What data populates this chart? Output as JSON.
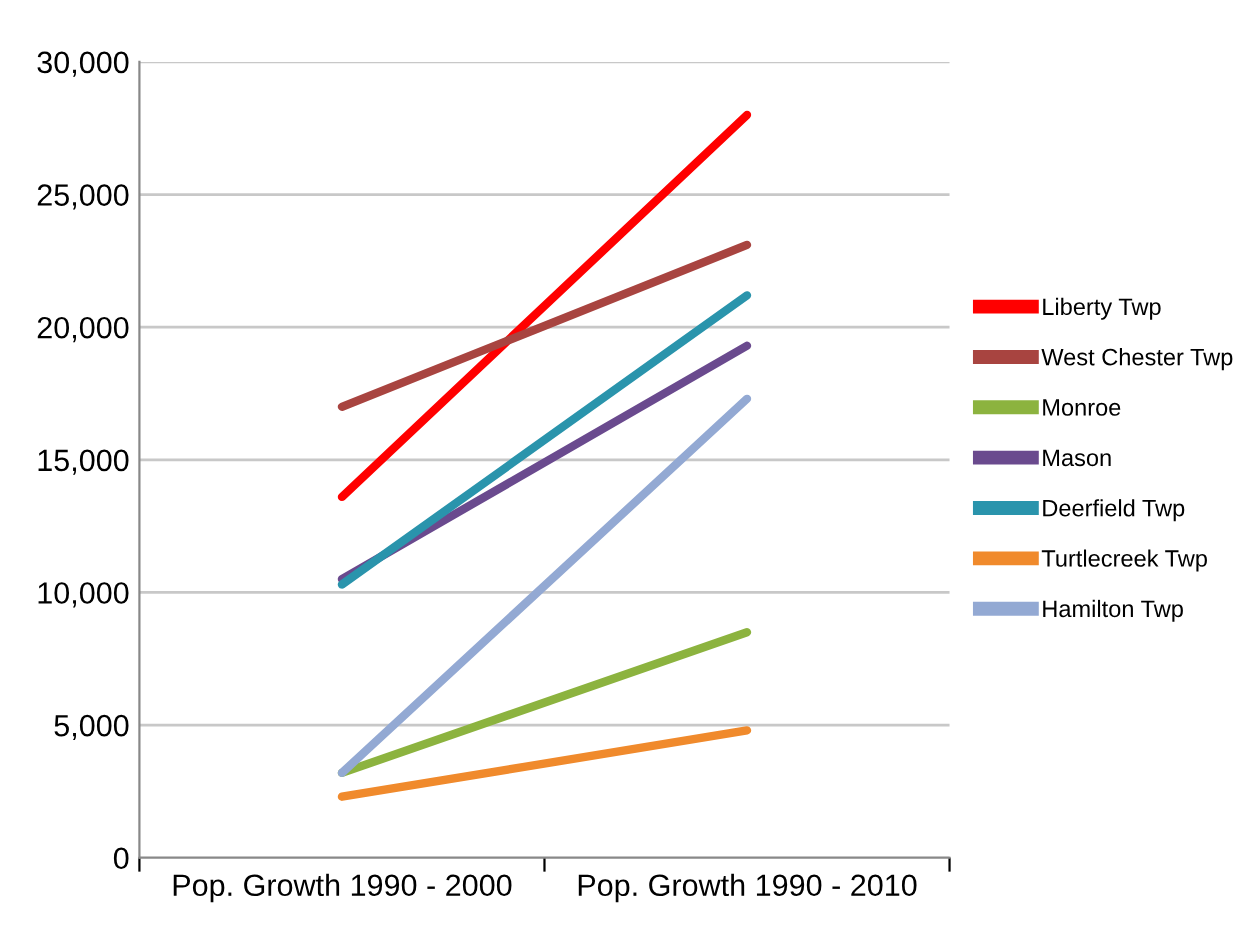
{
  "chart_data": {
    "type": "line",
    "categories": [
      "Pop. Growth 1990 - 2000",
      "Pop. Growth 1990 - 2010"
    ],
    "series": [
      {
        "name": "Liberty Twp",
        "color": "#ff0000",
        "values": [
          13600,
          28000
        ]
      },
      {
        "name": "West Chester Twp",
        "color": "#a84440",
        "values": [
          17000,
          23100
        ]
      },
      {
        "name": "Monroe",
        "color": "#8cb33f",
        "values": [
          3200,
          8500
        ]
      },
      {
        "name": "Mason",
        "color": "#6a4a8e",
        "values": [
          10500,
          19300
        ]
      },
      {
        "name": "Deerfield Twp",
        "color": "#2a94ac",
        "values": [
          10300,
          21200
        ]
      },
      {
        "name": "Turtlecreek Twp",
        "color": "#f08a2c",
        "values": [
          2300,
          4800
        ]
      },
      {
        "name": "Hamilton Twp",
        "color": "#93a9d3",
        "values": [
          3200,
          17300
        ]
      }
    ],
    "ylim": [
      0,
      30000
    ],
    "yticks": [
      {
        "value": 0,
        "label": "0"
      },
      {
        "value": 5000,
        "label": "5,000"
      },
      {
        "value": 10000,
        "label": "10,000"
      },
      {
        "value": 15000,
        "label": "15,000"
      },
      {
        "value": 20000,
        "label": "20,000"
      },
      {
        "value": 25000,
        "label": "25,000"
      },
      {
        "value": 30000,
        "label": "30,000"
      }
    ],
    "grid": "y",
    "legend": "right",
    "marker": "none",
    "line_style": "solid"
  }
}
